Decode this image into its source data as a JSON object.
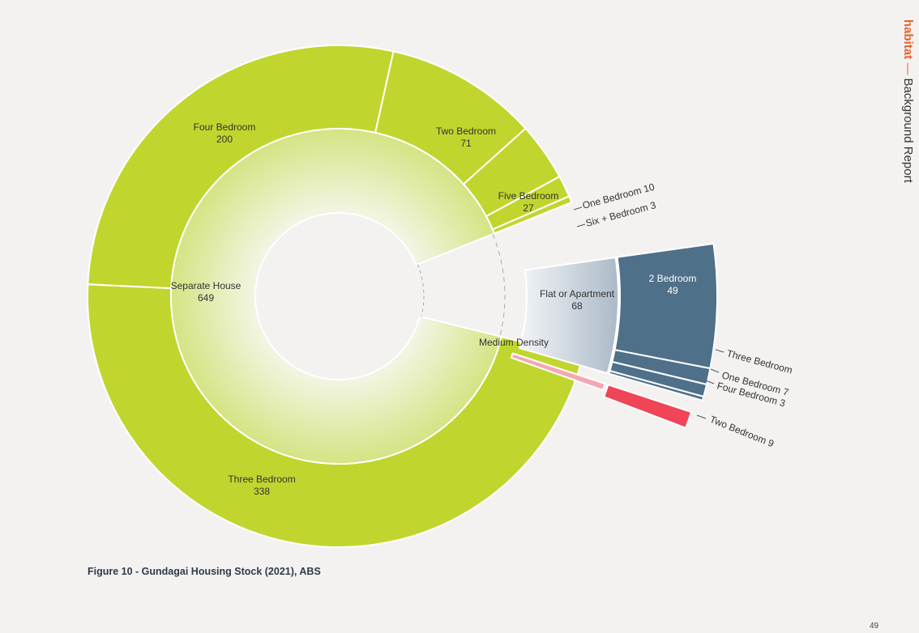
{
  "header": {
    "brand": "habitat",
    "dash": "—",
    "title": "Background Report"
  },
  "caption": "Figure 10 - Gundagai Housing Stock (2021), ABS",
  "page_number": "49",
  "colors": {
    "separate_outer": "#c0d62f",
    "separate_inner_center": "#f3f5e4",
    "separate_inner_edge": "#d4e483",
    "flat_outer": "#4f7089",
    "flat_inner_left": "#eef1f4",
    "flat_inner_right": "#aab9c7",
    "medium_outer": "#ef4556",
    "medium_inner": "#f5a7b3",
    "leader": "#555555"
  },
  "chart_data": {
    "type": "sunburst",
    "title": "",
    "groups": [
      {
        "name": "Separate House",
        "value": 649,
        "children": [
          {
            "name": "Three Bedroom",
            "value": 338
          },
          {
            "name": "Four Bedroom",
            "value": 200
          },
          {
            "name": "Two Bedroom",
            "value": 71
          },
          {
            "name": "Five Bedroom",
            "value": 27
          },
          {
            "name": "One Bedroom",
            "value": 10
          },
          {
            "name": "Six + Bedroom",
            "value": 3
          }
        ]
      },
      {
        "name": "Flat or Apartment",
        "value": 68,
        "children": [
          {
            "name": "2 Bedroom",
            "value": 49
          },
          {
            "name": "Three Bedroom",
            "value": null
          },
          {
            "name": "One Bedroom",
            "value": 7
          },
          {
            "name": "Four Bedroom",
            "value": 3
          }
        ]
      },
      {
        "name": "Medium Density",
        "value": null,
        "children": [
          {
            "name": "Two Bedroom",
            "value": 9
          }
        ]
      }
    ],
    "labels": {
      "sep_inner": [
        "Separate House",
        "649"
      ],
      "three_bed": [
        "Three Bedroom",
        "338"
      ],
      "four_bed": [
        "Four Bedroom",
        "200"
      ],
      "two_bed": [
        "Two Bedroom",
        "71"
      ],
      "five_bed": [
        "Five Bedroom",
        "27"
      ],
      "one_bed_callout": "One Bedroom 10",
      "six_bed_callout": "Six + Bedroom 3",
      "flat_inner": [
        "Flat or Apartment",
        "68"
      ],
      "flat_two_bed": [
        "2 Bedroom",
        "49"
      ],
      "flat_three_callout": "Three Bedroom",
      "flat_one_callout": "One Bedroom 7",
      "flat_four_callout": "Four Bedroom 3",
      "medium_inner": "Medium Density",
      "medium_two_callout": "Two Bedroom 9"
    }
  }
}
